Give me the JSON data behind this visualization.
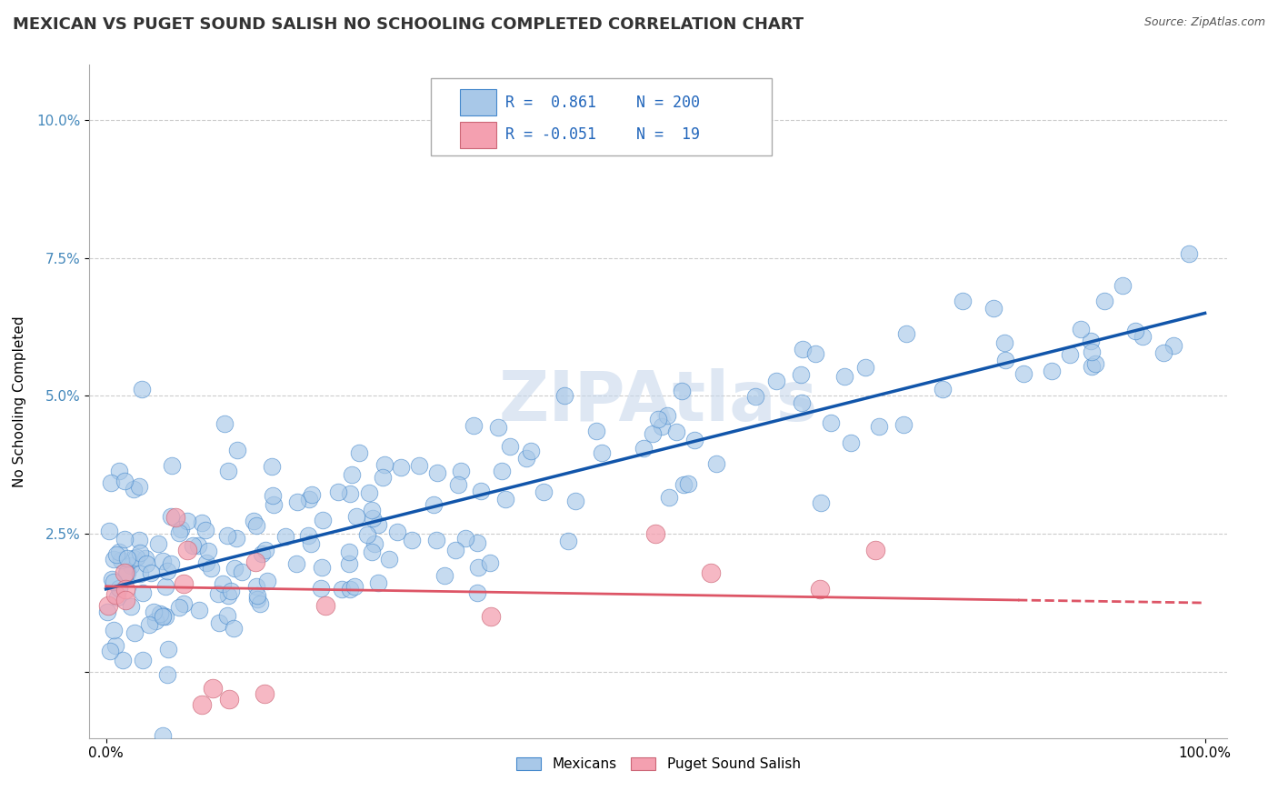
{
  "title": "MEXICAN VS PUGET SOUND SALISH NO SCHOOLING COMPLETED CORRELATION CHART",
  "source": "Source: ZipAtlas.com",
  "ylabel": "No Schooling Completed",
  "blue_R": 0.861,
  "blue_N": 200,
  "pink_R": -0.051,
  "pink_N": 19,
  "blue_color": "#a8c8e8",
  "blue_edge_color": "#4488cc",
  "pink_color": "#f4a0b0",
  "pink_edge_color": "#cc6677",
  "blue_line_color": "#1155aa",
  "pink_line_color": "#dd5566",
  "legend_blue_label": "Mexicans",
  "legend_pink_label": "Puget Sound Salish",
  "watermark": "ZIPAtlas",
  "grid_color": "#cccccc",
  "bg_color": "#ffffff",
  "title_fontsize": 13,
  "axis_label_fontsize": 11,
  "tick_fontsize": 11,
  "blue_line_x0": 0,
  "blue_line_y0": 1.5,
  "blue_line_x1": 100,
  "blue_line_y1": 6.5,
  "pink_line_x0": 0,
  "pink_line_y0": 1.55,
  "pink_line_x1": 83,
  "pink_line_y1": 1.3,
  "pink_dash_x0": 83,
  "pink_dash_y0": 1.3,
  "pink_dash_x1": 100,
  "pink_dash_y1": 1.25,
  "yticks": [
    0,
    2.5,
    5.0,
    7.5,
    10.0
  ],
  "ytick_labels": [
    "",
    "2.5%",
    "5.0%",
    "7.5%",
    "10.0%"
  ],
  "ylim_min": -1.2,
  "ylim_max": 11.0,
  "xlim_min": -1.5,
  "xlim_max": 102.0
}
